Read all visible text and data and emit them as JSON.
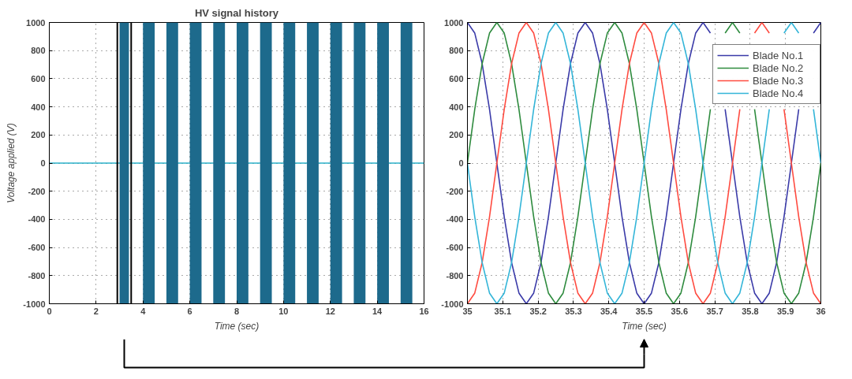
{
  "chart_data": [
    {
      "type": "line",
      "title": "HV signal history",
      "xlabel": "Time (sec)",
      "ylabel": "Voltage applied (V)",
      "x": [
        0,
        16
      ],
      "series": [
        {
          "color": "#2ab0c8",
          "values": [
            0,
            0
          ]
        }
      ],
      "bands": [
        {
          "axis": "x",
          "from": 3.0,
          "to": 3.4,
          "color": "#1d6a8c"
        },
        {
          "axis": "x",
          "from": 4.0,
          "to": 4.5,
          "color": "#1d6a8c"
        },
        {
          "axis": "x",
          "from": 5.0,
          "to": 5.5,
          "color": "#1d6a8c"
        },
        {
          "axis": "x",
          "from": 6.0,
          "to": 6.5,
          "color": "#1d6a8c"
        },
        {
          "axis": "x",
          "from": 7.0,
          "to": 7.5,
          "color": "#1d6a8c"
        },
        {
          "axis": "x",
          "from": 8.0,
          "to": 8.5,
          "color": "#1d6a8c"
        },
        {
          "axis": "x",
          "from": 9.0,
          "to": 9.5,
          "color": "#1d6a8c"
        },
        {
          "axis": "x",
          "from": 10.0,
          "to": 10.5,
          "color": "#1d6a8c"
        },
        {
          "axis": "x",
          "from": 11.0,
          "to": 11.5,
          "color": "#1d6a8c"
        },
        {
          "axis": "x",
          "from": 12.0,
          "to": 12.5,
          "color": "#1d6a8c"
        },
        {
          "axis": "x",
          "from": 13.0,
          "to": 13.5,
          "color": "#1d6a8c"
        },
        {
          "axis": "x",
          "from": 14.0,
          "to": 14.5,
          "color": "#1d6a8c"
        },
        {
          "axis": "x",
          "from": 15.0,
          "to": 15.5,
          "color": "#1d6a8c"
        }
      ],
      "xlim": [
        0,
        16
      ],
      "xticks": [
        0,
        2,
        4,
        6,
        8,
        10,
        12,
        14,
        16
      ],
      "ylim": [
        -1000,
        1000
      ],
      "yticks": [
        -1000,
        -800,
        -600,
        -400,
        -200,
        0,
        200,
        400,
        600,
        800,
        1000
      ],
      "grid": true,
      "line_style": "solid"
    },
    {
      "type": "line",
      "xlabel": "Time (sec)",
      "x": [
        35,
        35.0208,
        35.0417,
        35.0625,
        35.0833,
        35.1042,
        35.125,
        35.1458,
        35.1667,
        35.1875,
        35.2083,
        35.2292,
        35.25,
        35.2708,
        35.2917,
        35.3125,
        35.3333,
        35.3542,
        35.375,
        35.3958,
        35.4167,
        35.4375,
        35.4583,
        35.4792,
        35.5,
        35.5208,
        35.5417,
        35.5625,
        35.5833,
        35.6042,
        35.625,
        35.6458,
        35.6667,
        35.6875,
        35.7083,
        35.7292,
        35.75,
        35.7708,
        35.7917,
        35.8125,
        35.8333,
        35.8542,
        35.875,
        35.8958,
        35.9167,
        35.9375,
        35.9583,
        35.9792,
        36
      ],
      "series": [
        {
          "name": "Blade No.1",
          "color": "#3a3aa8",
          "values": [
            1000,
            924,
            707,
            383,
            0,
            -383,
            -707,
            -924,
            -1000,
            -924,
            -707,
            -383,
            0,
            383,
            707,
            924,
            1000,
            924,
            707,
            383,
            0,
            -383,
            -707,
            -924,
            -1000,
            -924,
            -707,
            -383,
            0,
            383,
            707,
            924,
            1000,
            924,
            null,
            383,
            0,
            -383,
            -707,
            -924,
            -1000,
            -924,
            -707,
            -383,
            0,
            383,
            null,
            924,
            1000
          ]
        },
        {
          "name": "Blade No.2",
          "color": "#2e8b3e",
          "values": [
            0,
            383,
            707,
            924,
            1000,
            924,
            707,
            383,
            0,
            -383,
            -707,
            -924,
            -1000,
            -924,
            -707,
            -383,
            0,
            383,
            707,
            924,
            1000,
            924,
            707,
            383,
            0,
            -383,
            -707,
            -924,
            -1000,
            -924,
            -707,
            -383,
            0,
            383,
            null,
            924,
            1000,
            924,
            null,
            383,
            0,
            -383,
            -707,
            -924,
            -1000,
            -924,
            -707,
            -383,
            0
          ]
        },
        {
          "name": "Blade No.3",
          "color": "#ff4b40",
          "values": [
            -1000,
            -924,
            -707,
            -383,
            0,
            383,
            707,
            924,
            1000,
            924,
            707,
            383,
            0,
            -383,
            -707,
            -924,
            -1000,
            -924,
            -707,
            -383,
            0,
            383,
            707,
            924,
            1000,
            924,
            707,
            383,
            0,
            -383,
            -707,
            -924,
            -1000,
            -924,
            -707,
            -383,
            0,
            383,
            null,
            924,
            1000,
            924,
            null,
            383,
            0,
            -383,
            -707,
            -924,
            -1000
          ]
        },
        {
          "name": "Blade No.4",
          "color": "#33b5d8",
          "values": [
            0,
            -383,
            -707,
            -924,
            -1000,
            -924,
            -707,
            -383,
            0,
            383,
            707,
            924,
            1000,
            924,
            707,
            383,
            0,
            -383,
            -707,
            -924,
            -1000,
            -924,
            -707,
            -383,
            0,
            383,
            707,
            924,
            1000,
            924,
            707,
            383,
            0,
            -383,
            -707,
            -924,
            -1000,
            -924,
            -707,
            -383,
            0,
            383,
            null,
            924,
            1000,
            924,
            null,
            383,
            0
          ]
        }
      ],
      "xlim": [
        35,
        36
      ],
      "xticks": [
        35,
        35.1,
        35.2,
        35.3,
        35.4,
        35.5,
        35.6,
        35.7,
        35.8,
        35.9,
        36
      ],
      "ylim": [
        -1000,
        1000
      ],
      "yticks": [
        -1000,
        -800,
        -600,
        -400,
        -200,
        0,
        200,
        400,
        600,
        800,
        1000
      ],
      "grid": true,
      "legend": "top right",
      "line_style": "solid"
    }
  ]
}
